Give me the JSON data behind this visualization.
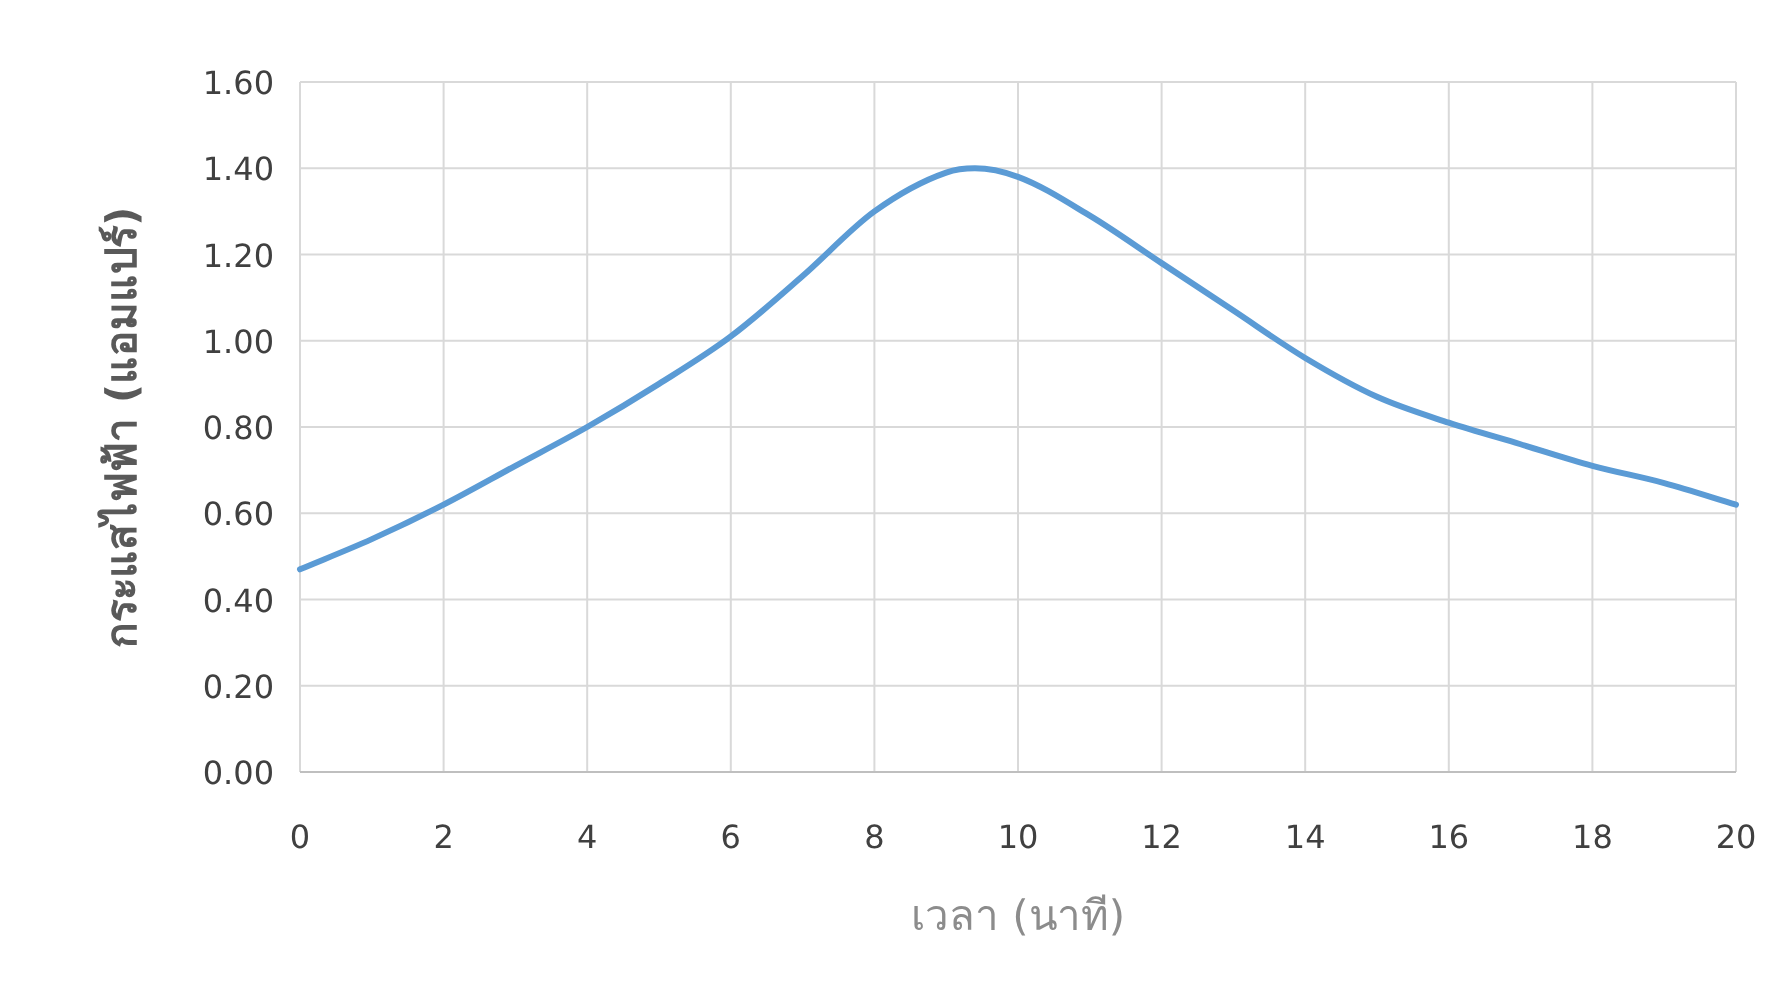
{
  "chart_data": {
    "type": "line",
    "xlabel": "เวลา (นาที)",
    "ylabel": "กระแสไฟฟ้า (แอมแปร์)",
    "x": [
      0,
      1,
      2,
      3,
      4,
      5,
      6,
      7,
      8,
      9,
      9.4,
      10,
      11,
      12,
      13,
      14,
      15,
      16,
      17,
      18,
      19,
      20
    ],
    "series": [
      {
        "color": "#5b9bd5",
        "values": [
          0.47,
          0.54,
          0.62,
          0.71,
          0.8,
          0.9,
          1.01,
          1.15,
          1.3,
          1.39,
          1.4,
          1.38,
          1.29,
          1.18,
          1.07,
          0.96,
          0.87,
          0.81,
          0.76,
          0.71,
          0.67,
          0.62
        ]
      }
    ],
    "xlim": [
      0,
      20
    ],
    "xticks": [
      0,
      2,
      4,
      6,
      8,
      10,
      12,
      14,
      16,
      18,
      20
    ],
    "ylim": [
      0,
      1.6
    ],
    "yticks": [
      {
        "value": 0,
        "label": "0.00"
      },
      {
        "value": 0.2,
        "label": "0.20"
      },
      {
        "value": 0.4,
        "label": "0.40"
      },
      {
        "value": 0.6,
        "label": "0.60"
      },
      {
        "value": 0.8,
        "label": "0.80"
      },
      {
        "value": 1.0,
        "label": "1.00"
      },
      {
        "value": 1.2,
        "label": "1.20"
      },
      {
        "value": 1.4,
        "label": "1.40"
      },
      {
        "value": 1.6,
        "label": "1.60"
      }
    ],
    "grid": true,
    "marker": "none",
    "line_style": "solid"
  }
}
